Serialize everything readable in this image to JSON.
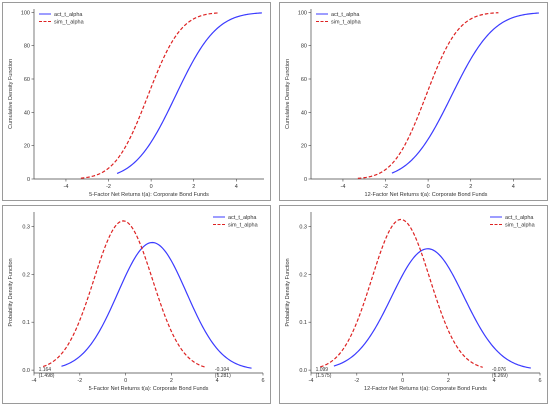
{
  "colors": {
    "act": "#3b3bff",
    "sim": "#dd2222",
    "axis": "#444444",
    "frame": "#9a9a9a"
  },
  "chart_data": [
    {
      "type": "line",
      "panel": "top-left",
      "function": "cumulative",
      "xlabel": "5-Factor Net Returns t(a): Corporate Bond Funds",
      "ylabel": "Cumulative Density Function",
      "xlim": [
        -5.5,
        5.3
      ],
      "ylim": [
        0,
        102
      ],
      "xticks": [
        -4,
        -2,
        0,
        2,
        4
      ],
      "yticks": [
        0,
        20,
        40,
        60,
        80,
        100
      ],
      "legend": "top-left",
      "series": [
        {
          "name": "act_t_alpha",
          "style": "solid",
          "mean": 1.15,
          "sd": 1.5,
          "x_start": -1.6,
          "x_end": 5.2
        },
        {
          "name": "sim_t_alpha",
          "style": "dashed",
          "mean": -0.15,
          "sd": 1.22,
          "x_start": -3.3,
          "x_end": 3.2
        }
      ],
      "annotations": []
    },
    {
      "type": "line",
      "panel": "top-right",
      "function": "cumulative",
      "xlabel": "12-Factor Net Returns t(a): Corporate Bond Funds",
      "ylabel": "Cumulative Density Function",
      "xlim": [
        -5.5,
        5.3
      ],
      "ylim": [
        0,
        102
      ],
      "xticks": [
        -4,
        -2,
        0,
        2,
        4
      ],
      "yticks": [
        0,
        20,
        40,
        60,
        80,
        100
      ],
      "legend": "top-left",
      "series": [
        {
          "name": "act_t_alpha",
          "style": "solid",
          "mean": 1.1,
          "sd": 1.55,
          "x_start": -1.7,
          "x_end": 5.2
        },
        {
          "name": "sim_t_alpha",
          "style": "dashed",
          "mean": -0.1,
          "sd": 1.2,
          "x_start": -3.3,
          "x_end": 3.3
        }
      ],
      "annotations": []
    },
    {
      "type": "line",
      "panel": "bottom-left",
      "function": "density",
      "xlabel": "5-Factor Net Returns t(a): Corporate Bond Funds",
      "ylabel": "Probability Density Function",
      "xlim": [
        -4,
        6
      ],
      "ylim": [
        -0.006,
        0.33
      ],
      "xticks": [
        -4,
        -2,
        0,
        2,
        4,
        6
      ],
      "yticks": [
        0.0,
        0.1,
        0.2,
        0.3
      ],
      "legend": "top-right",
      "series": [
        {
          "name": "act_t_alpha",
          "style": "solid",
          "mean": 1.164,
          "sd": 1.498,
          "x_start": -2.8,
          "x_end": 5.5
        },
        {
          "name": "sim_t_alpha",
          "style": "dashed",
          "mean": -0.104,
          "sd": 1.281,
          "x_start": -3.6,
          "x_end": 3.5
        }
      ],
      "annotations": [
        {
          "x": -3.8,
          "y": -0.006,
          "lines": [
            "1.164",
            "(1.498)"
          ]
        },
        {
          "x": 3.9,
          "y": -0.006,
          "lines": [
            "-0.104",
            "(1.281)"
          ]
        }
      ]
    },
    {
      "type": "line",
      "panel": "bottom-right",
      "function": "density",
      "xlabel": "12-Factor Net Returns t(a): Corporate Bond Funds",
      "ylabel": "Probability Density Function",
      "xlim": [
        -4,
        6
      ],
      "ylim": [
        -0.006,
        0.33
      ],
      "xticks": [
        -4,
        -2,
        0,
        2,
        4,
        6
      ],
      "yticks": [
        0.0,
        0.1,
        0.2,
        0.3
      ],
      "legend": "top-right",
      "series": [
        {
          "name": "act_t_alpha",
          "style": "solid",
          "mean": 1.099,
          "sd": 1.575,
          "x_start": -3.0,
          "x_end": 5.6
        },
        {
          "name": "sim_t_alpha",
          "style": "dashed",
          "mean": -0.076,
          "sd": 1.269,
          "x_start": -3.6,
          "x_end": 3.5
        }
      ],
      "annotations": [
        {
          "x": -3.8,
          "y": -0.006,
          "lines": [
            "1.099",
            "(1.575)"
          ]
        },
        {
          "x": 3.9,
          "y": -0.006,
          "lines": [
            "-0.076",
            "(1.269)"
          ]
        }
      ]
    }
  ]
}
